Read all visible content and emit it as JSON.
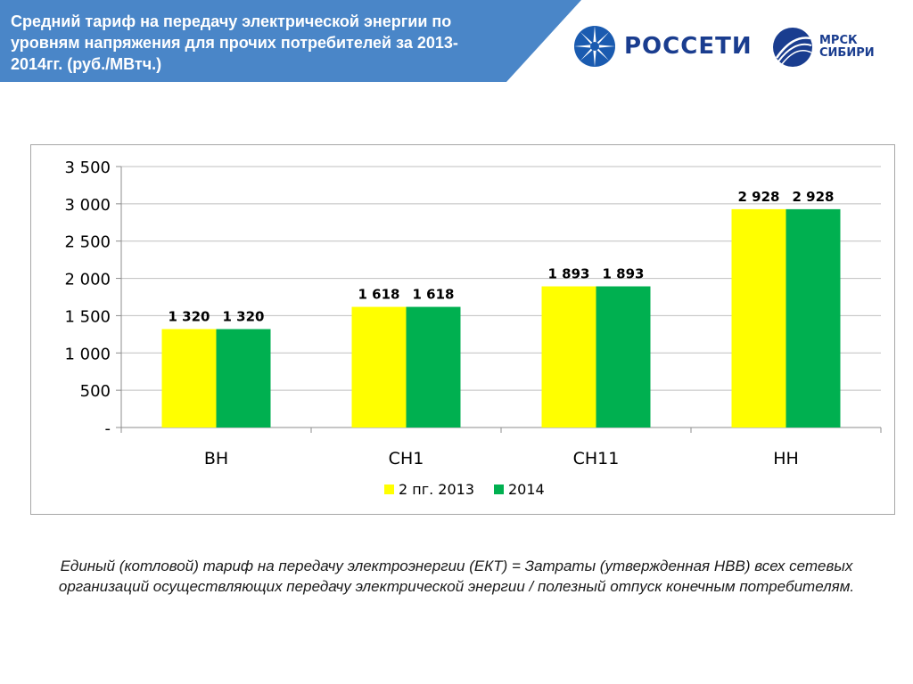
{
  "header": {
    "title": "Средний тариф на передачу электрической энергии по уровням напряжения для прочих потребителей за 2013-2014гг. (руб./МВтч.)",
    "banner_color": "#4a86c8"
  },
  "logos": {
    "rosseti": {
      "text": "РОССЕТИ",
      "icon": "rosseti-globe-icon"
    },
    "mrsk": {
      "line1": "МРСК",
      "line2": "СИБИРИ",
      "icon": "mrsk-globe-icon"
    }
  },
  "chart_data": {
    "type": "bar",
    "categories": [
      "ВН",
      "СН1",
      "СН11",
      "НН"
    ],
    "series": [
      {
        "name": "2 пг. 2013",
        "color": "#ffff00",
        "values": [
          1320,
          1618,
          1893,
          2928
        ],
        "labels": [
          "1 320",
          "1 618",
          "1 893",
          "2 928"
        ]
      },
      {
        "name": "2014",
        "color": "#00b050",
        "values": [
          1320,
          1618,
          1893,
          2928
        ],
        "labels": [
          "1 320",
          "1 618",
          "1 893",
          "2 928"
        ]
      }
    ],
    "yticks": [
      {
        "value": 0,
        "label": "-"
      },
      {
        "value": 500,
        "label": "500"
      },
      {
        "value": 1000,
        "label": "1 000"
      },
      {
        "value": 1500,
        "label": "1 500"
      },
      {
        "value": 2000,
        "label": "2 000"
      },
      {
        "value": 2500,
        "label": "2 500"
      },
      {
        "value": 3000,
        "label": "3 000"
      },
      {
        "value": 3500,
        "label": "3 500"
      }
    ],
    "ylim": [
      0,
      3500
    ],
    "grid": true,
    "legend_position": "bottom"
  },
  "footnote": "Единый (котловой) тариф на передачу  электроэнергии (ЕКТ) = Затраты (утвержденная НВВ) всех сетевых организаций осуществляющих передачу электрической энергии / полезный отпуск конечным потребителям."
}
